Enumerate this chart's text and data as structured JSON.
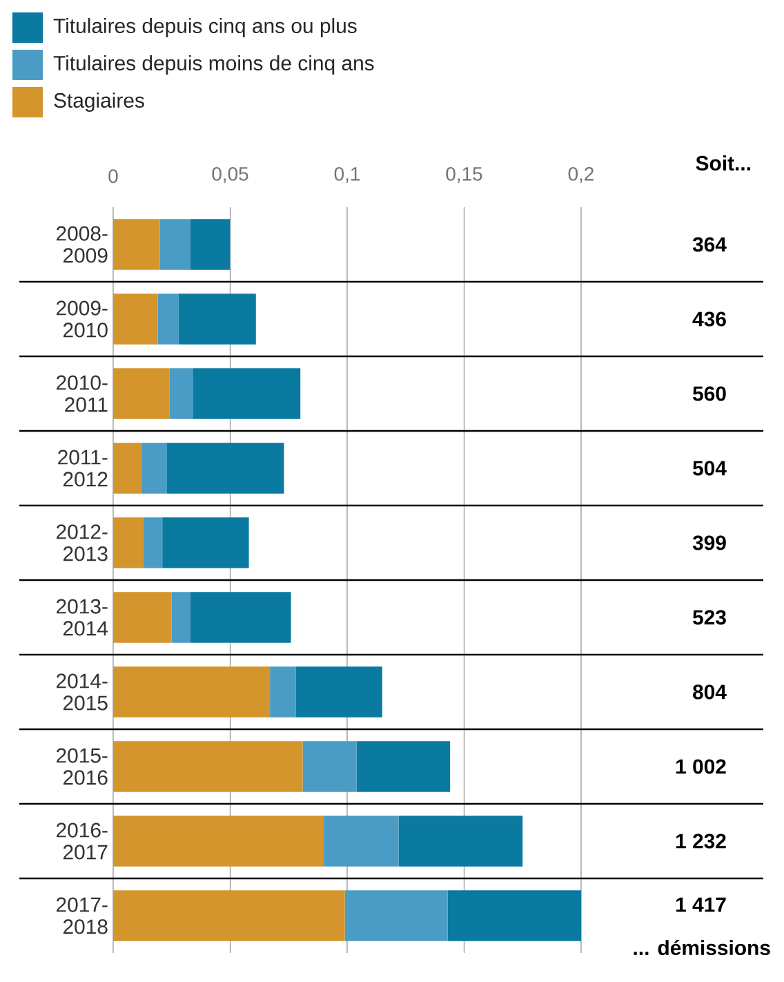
{
  "chart_data": {
    "type": "bar",
    "orientation": "horizontal",
    "stacked": true,
    "legend": "top",
    "grid": "x",
    "categories": [
      "2008-2009",
      "2009-2010",
      "2010-2011",
      "2011-2012",
      "2012-2013",
      "2013-2014",
      "2014-2015",
      "2015-2016",
      "2016-2017",
      "2017-2018"
    ],
    "series": [
      {
        "name": "Stagiaires",
        "color": "#d4952c",
        "values": [
          0.02,
          0.019,
          0.024,
          0.012,
          0.013,
          0.025,
          0.067,
          0.081,
          0.09,
          0.099
        ]
      },
      {
        "name": "Titulaires depuis moins de cinq ans",
        "color": "#4a9cc4",
        "values": [
          0.013,
          0.009,
          0.01,
          0.011,
          0.008,
          0.008,
          0.011,
          0.023,
          0.032,
          0.044
        ]
      },
      {
        "name": "Titulaires depuis cinq ans ou plus",
        "color": "#0a7aa0",
        "values": [
          0.017,
          0.033,
          0.046,
          0.05,
          0.037,
          0.043,
          0.037,
          0.04,
          0.053,
          0.057
        ]
      }
    ],
    "xlim": [
      0,
      0.2
    ],
    "xticks": [
      {
        "value": 0,
        "label": "0"
      },
      {
        "value": 0.05,
        "label": "0,05"
      },
      {
        "value": 0.1,
        "label": "0,1"
      },
      {
        "value": 0.15,
        "label": "0,15"
      },
      {
        "value": 0.2,
        "label": "0,2"
      }
    ],
    "annotations": [
      "Soit...",
      "364",
      "436",
      "560",
      "504",
      "399",
      "523",
      "804",
      "1 002",
      "1 232",
      "1 417",
      "... démissions"
    ]
  }
}
